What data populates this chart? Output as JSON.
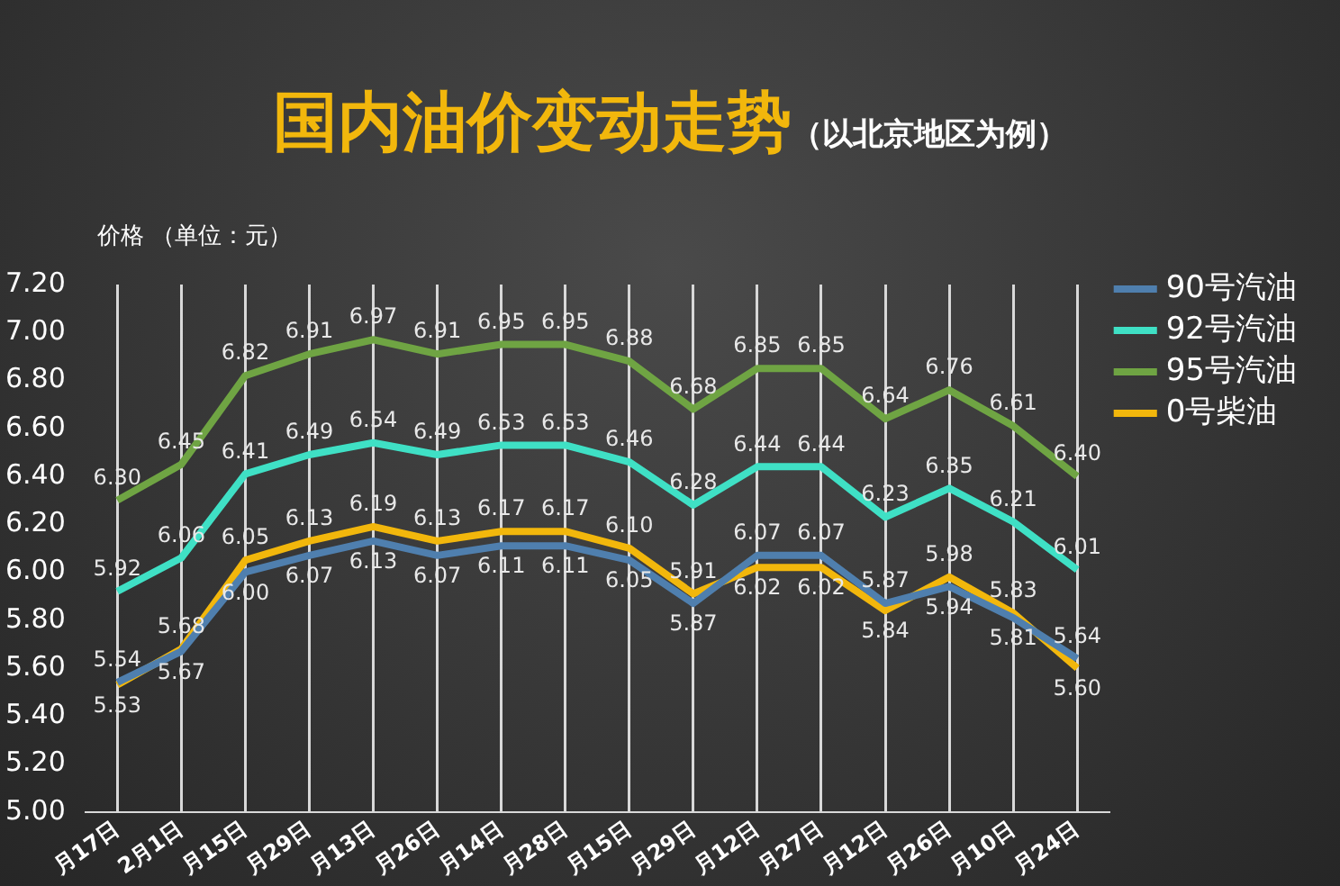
{
  "chart_data": {
    "type": "line",
    "title": "国内油价变动走势",
    "subtitle": "（以北京地区为例）",
    "ylabel": "价格 （单位：元）",
    "categories": [
      "月17日",
      "2月1日",
      "月15日",
      "月29日",
      "月13日",
      "月26日",
      "月14日",
      "月28日",
      "月15日",
      "月29日",
      "月12日",
      "月27日",
      "月12日",
      "月26日",
      "月10日",
      "月24日"
    ],
    "series": [
      {
        "name": "90号汽油",
        "color": "#4f7fae",
        "values": [
          5.54,
          5.67,
          6.0,
          6.07,
          6.13,
          6.07,
          6.11,
          6.11,
          6.05,
          5.87,
          6.07,
          6.07,
          5.87,
          5.94,
          5.81,
          5.64
        ],
        "value_labels": [
          "5.54",
          "5.67",
          "6.00",
          "6.07",
          "6.13",
          "6.07",
          "6.11",
          "6.11",
          "6.05",
          "5.87",
          "6.07",
          "6.07",
          "5.87",
          "5.94",
          "5.81",
          "5.64"
        ]
      },
      {
        "name": "92号汽油",
        "color": "#3fe0c5",
        "values": [
          5.92,
          6.06,
          6.41,
          6.49,
          6.54,
          6.49,
          6.53,
          6.53,
          6.46,
          6.28,
          6.44,
          6.44,
          6.23,
          6.35,
          6.21,
          6.01
        ],
        "value_labels": [
          "5.92",
          "6.06",
          "6.41",
          "6.49",
          "6.54",
          "6.49",
          "6.53",
          "6.53",
          "6.46",
          "6.28",
          "6.44",
          "6.44",
          "6.23",
          "6.35",
          "6.21",
          "6.01"
        ]
      },
      {
        "name": "95号汽油",
        "color": "#6fa443",
        "values": [
          6.3,
          6.45,
          6.82,
          6.91,
          6.97,
          6.91,
          6.95,
          6.95,
          6.88,
          6.68,
          6.85,
          6.85,
          6.64,
          6.76,
          6.61,
          6.4
        ],
        "value_labels": [
          "6.30",
          "6.45",
          "6.82",
          "6.91",
          "6.97",
          "6.91",
          "6.95",
          "6.95",
          "6.88",
          "6.68",
          "6.85",
          "6.85",
          "6.64",
          "6.76",
          "6.61",
          "6.40"
        ]
      },
      {
        "name": "0号柴油",
        "color": "#f2b70c",
        "values": [
          5.53,
          5.68,
          6.05,
          6.13,
          6.19,
          6.13,
          6.17,
          6.17,
          6.1,
          5.91,
          6.02,
          6.02,
          5.84,
          5.98,
          5.83,
          5.6
        ],
        "value_labels": [
          "5.53",
          "5.68",
          "6.05",
          "6.13",
          "6.19",
          "6.13",
          "6.17",
          "6.17",
          "6.10",
          "5.91",
          "6.02",
          "6.02",
          "5.84",
          "5.98",
          "5.83",
          "5.60"
        ]
      }
    ],
    "ylim": [
      5.0,
      7.2
    ],
    "yticks": [
      {
        "value": 5.0,
        "label": "5.00"
      },
      {
        "value": 5.2,
        "label": "5.20"
      },
      {
        "value": 5.4,
        "label": "5.40"
      },
      {
        "value": 5.6,
        "label": "5.60"
      },
      {
        "value": 5.8,
        "label": "5.80"
      },
      {
        "value": 6.0,
        "label": "6.00"
      },
      {
        "value": 6.2,
        "label": "6.20"
      },
      {
        "value": 6.4,
        "label": "6.40"
      },
      {
        "value": 6.6,
        "label": "6.60"
      },
      {
        "value": 6.8,
        "label": "6.80"
      },
      {
        "value": 7.0,
        "label": "7.00"
      },
      {
        "value": 7.2,
        "label": "7.20"
      }
    ],
    "grid": "x",
    "legend": "right",
    "marker": "none"
  }
}
